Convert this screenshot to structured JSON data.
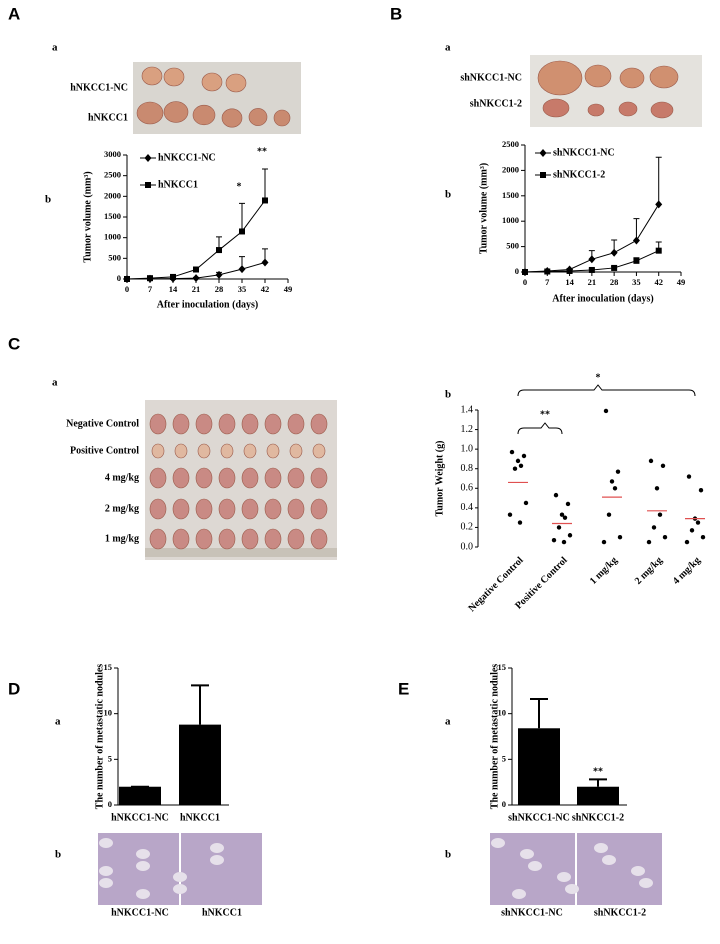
{
  "panels": [
    {
      "letter": "A",
      "parts": [
        "a",
        "b"
      ]
    },
    {
      "letter": "B",
      "parts": [
        "a",
        "b"
      ]
    },
    {
      "letter": "C",
      "parts": [
        "a",
        "b"
      ]
    },
    {
      "letter": "D",
      "parts": [
        "a",
        "b"
      ]
    },
    {
      "letter": "E",
      "parts": [
        "a",
        "b"
      ]
    }
  ],
  "photos": [
    {
      "labels": [
        "hNKCC1-NC",
        "hNKCC1"
      ]
    },
    {
      "labels": [
        "shNKCC1-NC",
        "shNKCC1-2"
      ]
    },
    {
      "labels": [
        "Negative Control",
        "Positive Control",
        "4 mg/kg",
        "2 mg/kg",
        "1 mg/kg"
      ]
    },
    {
      "labels": [
        "hNKCC1-NC",
        "hNKCC1"
      ]
    },
    {
      "labels": [
        "shNKCC1-NC",
        "shNKCC1-2"
      ]
    }
  ],
  "chart_data": [
    {
      "type": "line",
      "y_label": "Tumor volume (mm³)",
      "x_label": "After inoculation (days)",
      "x": [
        0,
        7,
        14,
        21,
        28,
        35,
        42
      ],
      "xlim": [
        0,
        49
      ],
      "xticks": [
        0,
        7,
        14,
        21,
        28,
        35,
        42,
        49
      ],
      "ylim": [
        0,
        3000
      ],
      "yticks": [
        0,
        500,
        1000,
        1500,
        2000,
        2500,
        3000
      ],
      "series": [
        {
          "name": "hNKCC1-NC",
          "color": "#000000",
          "marker": "diamond",
          "values": [
            0,
            5,
            10,
            20,
            100,
            240,
            400
          ],
          "errors": [
            0,
            5,
            10,
            20,
            60,
            300,
            330
          ]
        },
        {
          "name": "hNKCC1",
          "color": "#000000",
          "marker": "square",
          "values": [
            0,
            20,
            50,
            230,
            700,
            1150,
            1900
          ],
          "errors": [
            0,
            10,
            20,
            50,
            320,
            680,
            760
          ]
        }
      ],
      "annotations": [
        "*",
        "**"
      ]
    },
    {
      "type": "line",
      "y_label": "Tumor volume (mm³)",
      "x_label": "After inoculation (days)",
      "x": [
        0,
        7,
        14,
        21,
        28,
        35,
        42
      ],
      "xlim": [
        0,
        49
      ],
      "xticks": [
        0,
        7,
        14,
        21,
        28,
        35,
        42,
        49
      ],
      "ylim": [
        0,
        2500
      ],
      "yticks": [
        0,
        500,
        1000,
        1500,
        2000,
        2500
      ],
      "series": [
        {
          "name": "shNKCC1-NC",
          "color": "#000000",
          "marker": "diamond",
          "values": [
            0,
            20,
            50,
            250,
            380,
            620,
            1330
          ],
          "errors": [
            0,
            5,
            15,
            170,
            250,
            430,
            930
          ]
        },
        {
          "name": "shNKCC1-2",
          "color": "#000000",
          "marker": "square",
          "values": [
            0,
            10,
            20,
            40,
            80,
            220,
            420
          ],
          "errors": [
            0,
            5,
            10,
            20,
            30,
            60,
            170
          ]
        }
      ],
      "annotations": []
    },
    {
      "type": "dot",
      "y_label": "Tumor Weight (g)",
      "categories": [
        "Negative Control",
        "Positive Control",
        "1 mg/kg",
        "2 mg/kg",
        "4 mg/kg"
      ],
      "values": [
        [
          0.97,
          0.93,
          0.88,
          0.83,
          0.8,
          0.45,
          0.33,
          0.25
        ],
        [
          0.53,
          0.44,
          0.33,
          0.3,
          0.2,
          0.12,
          0.07,
          0.05
        ],
        [
          1.39,
          0.77,
          0.67,
          0.6,
          0.33,
          0.1,
          0.05
        ],
        [
          0.88,
          0.83,
          0.6,
          0.33,
          0.2,
          0.1,
          0.05
        ],
        [
          0.72,
          0.58,
          0.29,
          0.25,
          0.17,
          0.1,
          0.05
        ]
      ],
      "means": [
        0.66,
        0.24,
        0.51,
        0.37,
        0.29
      ],
      "color": "#000000",
      "mean_color": "#e05050",
      "ylim": [
        0,
        1.4
      ],
      "yticks": [
        {
          "value": 0,
          "label": "0.0"
        },
        0.2,
        0.4,
        0.6,
        0.8,
        {
          "value": 1,
          "label": "1.0"
        },
        1.2,
        1.4
      ],
      "annotations": [
        "*",
        "**"
      ]
    },
    {
      "type": "bar",
      "y_label": "The number of metastatic nodules",
      "categories": [
        "hNKCC1-NC",
        "hNKCC1"
      ],
      "values": [
        2,
        8.8
      ],
      "errors": [
        0,
        4.3
      ],
      "color": "#000000",
      "ylim": [
        0,
        15
      ],
      "yticks": [
        0,
        5,
        10,
        15
      ],
      "annotations": []
    },
    {
      "type": "bar",
      "y_label": "The number of metastatic nodules",
      "categories": [
        "shNKCC1-NC",
        "shNKCC1-2"
      ],
      "values": [
        8.4,
        2
      ],
      "errors": [
        3.2,
        0.8
      ],
      "color": "#000000",
      "ylim": [
        0,
        15
      ],
      "yticks": [
        0,
        5,
        10,
        15
      ],
      "annotations": [
        "**"
      ]
    }
  ]
}
